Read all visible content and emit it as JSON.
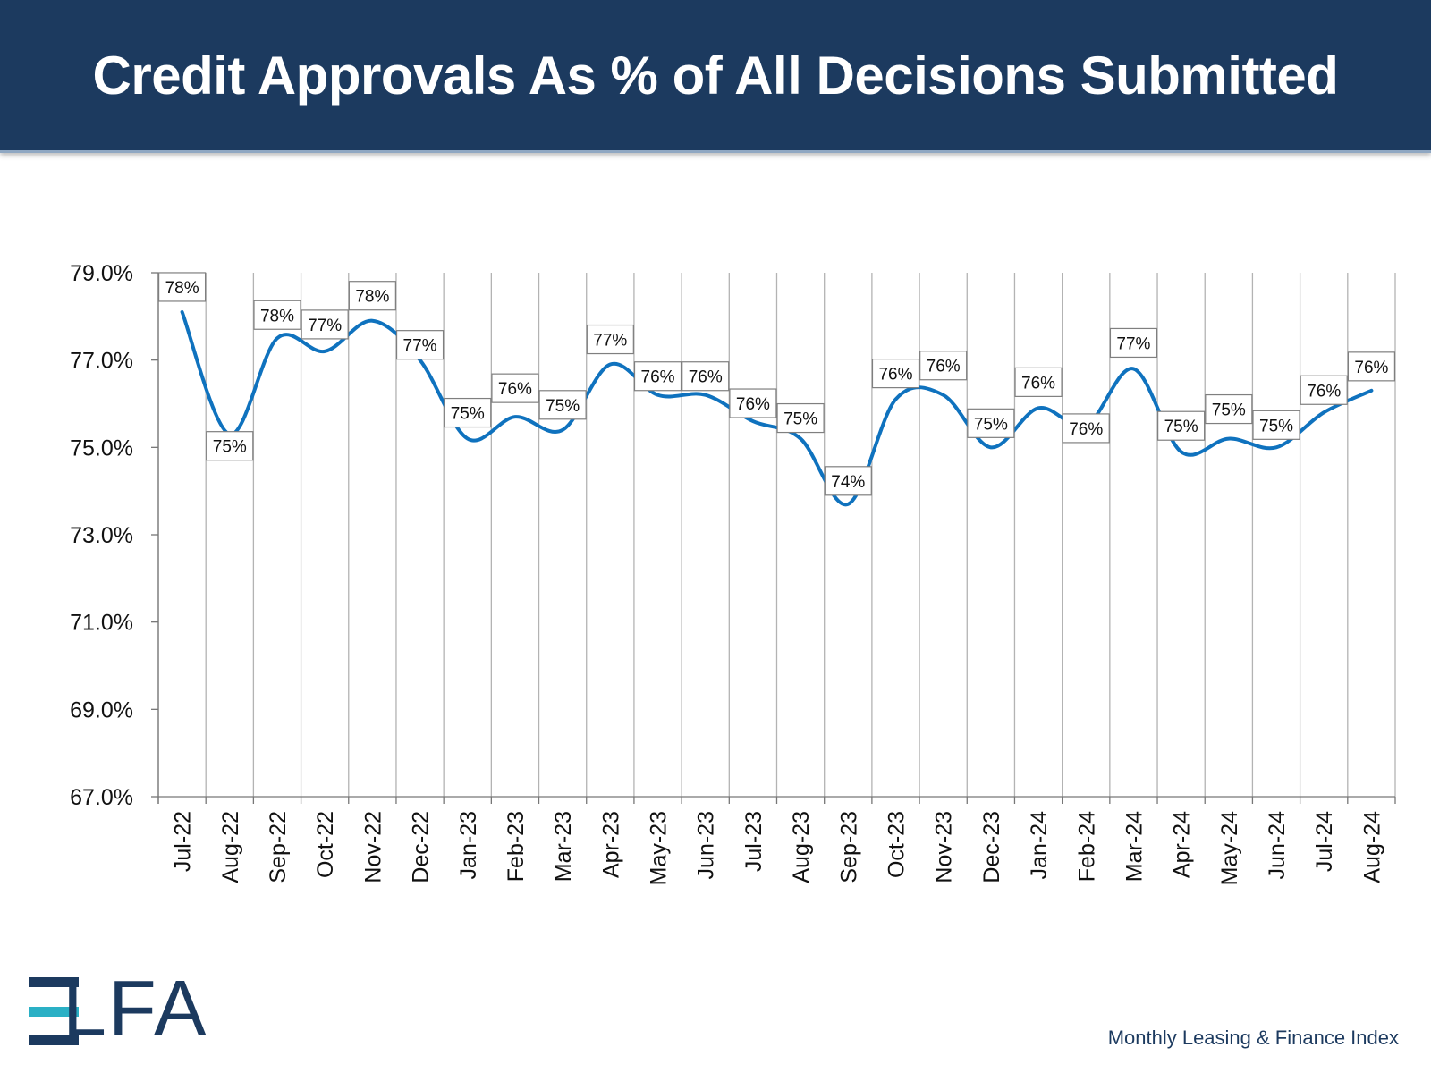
{
  "header": {
    "title": "Credit Approvals As % of All Decisions Submitted"
  },
  "colors": {
    "header_bg": "#1c3a5f",
    "line": "#0f72be",
    "grid": "#b3b3b3",
    "logo_accent": "#2ab0c5",
    "logo_dark": "#1c3a5f"
  },
  "chart_data": {
    "type": "line",
    "title": "",
    "xlabel": "",
    "ylabel": "",
    "ylim": [
      67.0,
      79.0
    ],
    "yticks": [
      "79.0%",
      "77.0%",
      "75.0%",
      "73.0%",
      "71.0%",
      "69.0%",
      "67.0%"
    ],
    "ytick_values": [
      79,
      77,
      75,
      73,
      71,
      69,
      67
    ],
    "categories": [
      "Jul-22",
      "Aug-22",
      "Sep-22",
      "Oct-22",
      "Nov-22",
      "Dec-22",
      "Jan-23",
      "Feb-23",
      "Mar-23",
      "Apr-23",
      "May-23",
      "Jun-23",
      "Jul-23",
      "Aug-23",
      "Sep-23",
      "Oct-23",
      "Nov-23",
      "Dec-23",
      "Jan-24",
      "Feb-24",
      "Mar-24",
      "Apr-24",
      "May-24",
      "Jun-24",
      "Jul-24",
      "Aug-24"
    ],
    "values": [
      78.1,
      75.3,
      77.5,
      77.2,
      77.9,
      77.0,
      75.2,
      75.7,
      75.4,
      76.9,
      76.2,
      76.2,
      75.6,
      75.2,
      73.7,
      76.1,
      76.2,
      75.0,
      75.9,
      75.5,
      76.8,
      74.9,
      75.2,
      75.0,
      75.8,
      76.3
    ],
    "data_labels": [
      "78%",
      "75%",
      "78%",
      "77%",
      "78%",
      "77%",
      "75%",
      "76%",
      "75%",
      "77%",
      "76%",
      "76%",
      "76%",
      "75%",
      "74%",
      "76%",
      "76%",
      "75%",
      "76%",
      "76%",
      "77%",
      "75%",
      "75%",
      "75%",
      "76%",
      "76%"
    ],
    "label_dy": [
      -28,
      13,
      -26,
      -30,
      -28,
      -17,
      -29,
      -32,
      -28,
      -28,
      -21,
      -21,
      -20,
      -23,
      -26,
      -29,
      -33,
      -27,
      -29,
      3,
      -29,
      -29,
      -33,
      -25,
      -25,
      -27
    ],
    "label_dx": [
      0,
      0,
      0,
      0,
      0,
      0,
      0,
      0,
      0,
      0,
      0,
      0,
      0,
      0,
      0,
      0,
      0,
      0,
      0,
      0,
      0,
      0,
      0,
      0,
      0,
      0
    ]
  },
  "logo": {
    "text": "LFA",
    "aria": "ELFA"
  },
  "footer": {
    "text": "Monthly Leasing & Finance Index"
  }
}
